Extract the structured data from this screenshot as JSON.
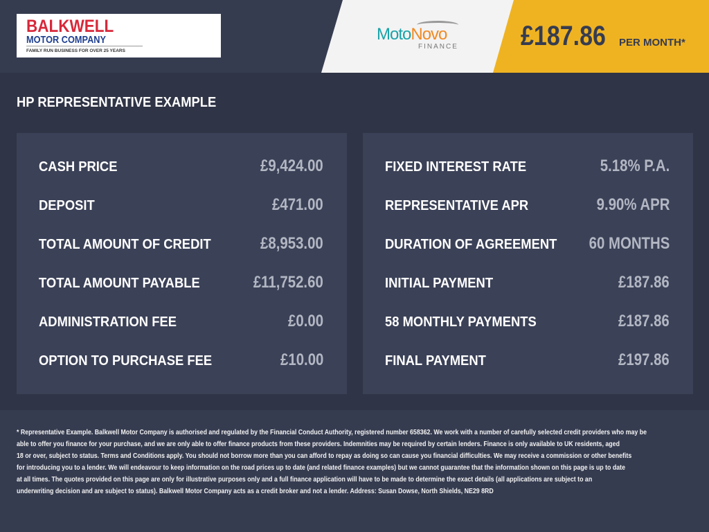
{
  "header": {
    "dealer_logo": {
      "line1": "BALKWELL",
      "line2": "MOTOR COMPANY",
      "tagline": "FAMILY RUN BUSINESS FOR OVER 25 YEARS"
    },
    "finance_logo": {
      "part1": "Moto",
      "part2": "Novo",
      "sub": "FINANCE"
    },
    "monthly_price": "£187.86",
    "per_month_label": "PER MONTH*"
  },
  "section_title": "HP REPRESENTATIVE EXAMPLE",
  "left_panel": [
    {
      "label": "CASH PRICE",
      "value": "£9,424.00"
    },
    {
      "label": "DEPOSIT",
      "value": "£471.00"
    },
    {
      "label": "TOTAL AMOUNT OF CREDIT",
      "value": "£8,953.00"
    },
    {
      "label": "TOTAL AMOUNT PAYABLE",
      "value": "£11,752.60"
    },
    {
      "label": "ADMINISTRATION FEE",
      "value": "£0.00"
    },
    {
      "label": "OPTION TO PURCHASE FEE",
      "value": "£10.00"
    }
  ],
  "right_panel": [
    {
      "label": "FIXED INTEREST RATE",
      "value": "5.18% P.A."
    },
    {
      "label": "REPRESENTATIVE APR",
      "value": "9.90% APR"
    },
    {
      "label": "DURATION OF AGREEMENT",
      "value": "60 MONTHS"
    },
    {
      "label": "INITIAL PAYMENT",
      "value": "£187.86"
    },
    {
      "label": "58 MONTHLY PAYMENTS",
      "value": "£187.86"
    },
    {
      "label": "FINAL PAYMENT",
      "value": "£197.86"
    }
  ],
  "disclaimer_lines": [
    "* Representative Example. Balkwell Motor Company is authorised and regulated by the Financial Conduct Authority, registered number 658362. We work with a number of carefully selected credit providers who may be",
    "able to offer you finance for your purchase, and we are only able to offer finance products from these providers. Indemnities may be required by certain lenders. Finance is only available to UK residents, aged",
    "18 or over, subject to status. Terms and Conditions apply. You should not borrow more than you can afford to repay as doing so can cause you financial difficulties. We may receive a commission or other benefits",
    "for introducing you to a lender. We will endeavour to keep information on the road prices up to date (and related finance examples) but we cannot guarantee that the information shown on this page is up to date",
    "at all times. The quotes provided on this page are only for illustrative purposes only and a full finance application will have to be made to determine the exact details (all applications are subject to an",
    "underwriting decision and are subject to status). Balkwell Motor Company acts as a credit broker and not a lender. Address: Susan Dowse, North Shields, NE29 8RD"
  ]
}
